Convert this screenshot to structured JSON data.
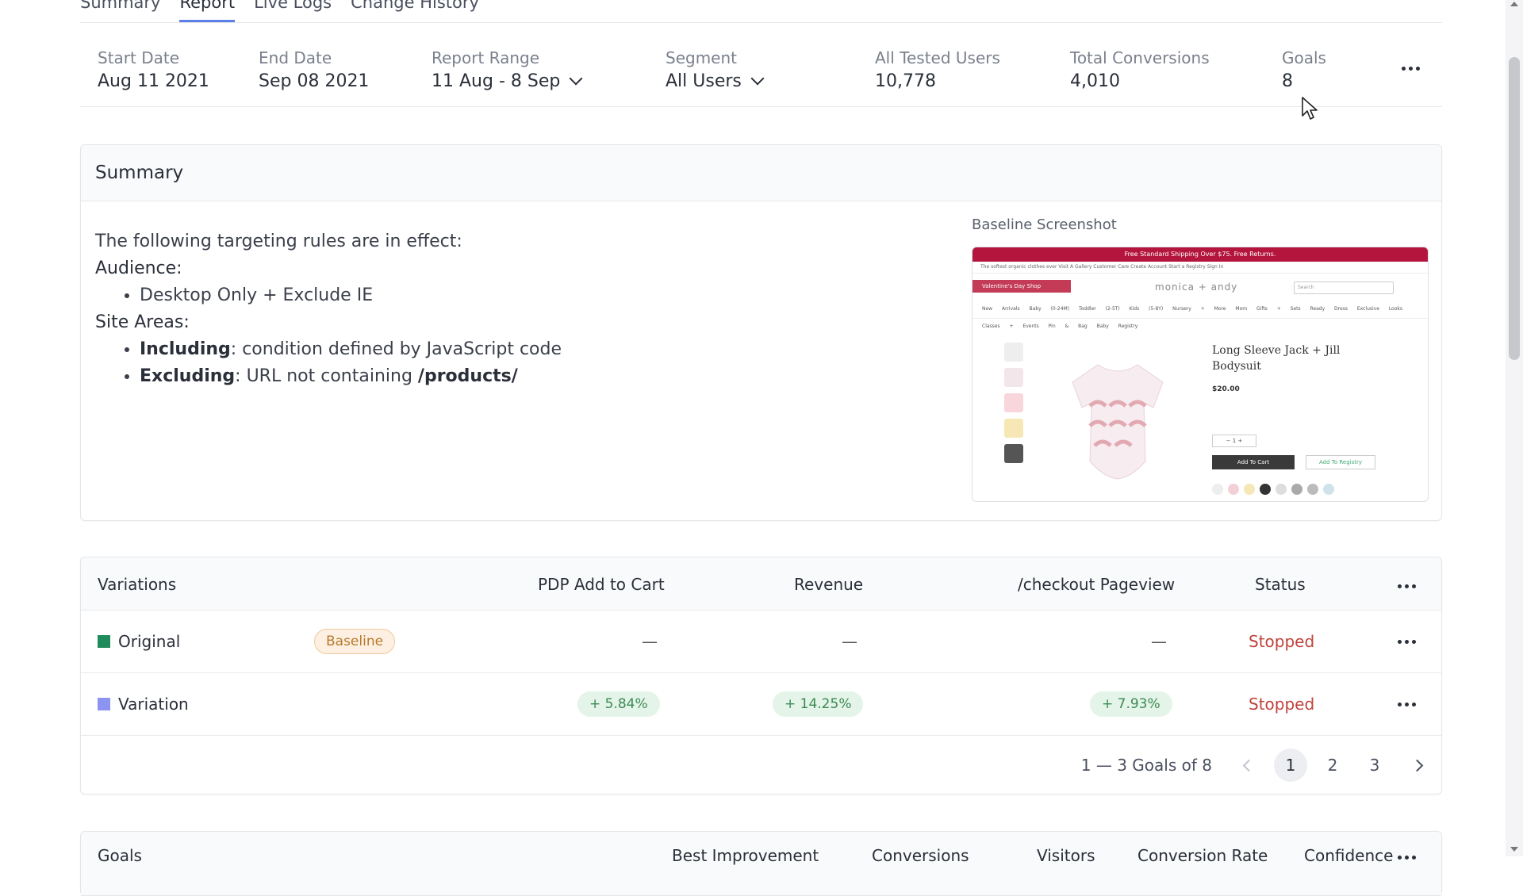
{
  "tabs": [
    {
      "label": "Summary"
    },
    {
      "label": "Report",
      "active": true
    },
    {
      "label": "Live Logs"
    },
    {
      "label": "Change History"
    }
  ],
  "metrics": {
    "start_date": {
      "label": "Start Date",
      "value": "Aug 11 2021"
    },
    "end_date": {
      "label": "End Date",
      "value": "Sep 08 2021"
    },
    "report_range": {
      "label": "Report Range",
      "value": "11 Aug - 8 Sep"
    },
    "segment": {
      "label": "Segment",
      "value": "All Users"
    },
    "tested_users": {
      "label": "All Tested Users",
      "value": "10,778"
    },
    "conversions": {
      "label": "Total Conversions",
      "value": "4,010"
    },
    "goals": {
      "label": "Goals",
      "value": "8"
    }
  },
  "summary": {
    "title": "Summary",
    "intro": "The following targeting rules are in effect:",
    "audience_heading": "Audience:",
    "audience_item": "Desktop Only + Exclude IE",
    "site_heading": "Site Areas:",
    "including_label": "Including",
    "including_text": ": condition defined by JavaScript code",
    "excluding_label": "Excluding",
    "excluding_text": ": URL not containing ",
    "excluding_path": "/products/",
    "screenshot_label": "Baseline Screenshot",
    "shot": {
      "banner": "Free Standard Shipping Over $75. Free Returns.",
      "top_links": "The softest organic clothes ever   Visit A Gallery   Customer Care   Create Account   Start a Registry   Sign In",
      "ribbon": "Valentine's Day Shop",
      "logo": "monica + andy",
      "search": "Search",
      "menu": "New Arrivals  Baby (0-24M)  Toddler (2-5T)  Kids (5-8Y)  Nursery + More  Mom  Gifts + Sets  Ready Dress  Exclusive Looks  Classes + Events  Pin & Bag  Baby Registry",
      "product": "Long Sleeve Jack + Jill Bodysuit",
      "price": "$20.00",
      "qty": "−  1  +",
      "add_cart": "Add To Cart",
      "add_registry": "Add To Registry"
    }
  },
  "variations": {
    "headers": {
      "variations": "Variations",
      "pdp": "PDP Add to Cart",
      "revenue": "Revenue",
      "checkout": "/checkout Pageview",
      "status": "Status"
    },
    "rows": [
      {
        "name": "Original",
        "color": "#1f8a5a",
        "badge": "Baseline",
        "pdp": "—",
        "revenue": "—",
        "checkout": "—",
        "status": "Stopped"
      },
      {
        "name": "Variation",
        "color": "#8c93f0",
        "badge": "",
        "pdp": "+ 5.84%",
        "revenue": "+ 14.25%",
        "checkout": "+ 7.93%",
        "status": "Stopped"
      }
    ],
    "pager": {
      "summary": "1 — 3 Goals of 8",
      "pages": [
        "1",
        "2",
        "3"
      ],
      "active": "1"
    }
  },
  "goals_table": {
    "headers": {
      "goals": "Goals",
      "best": "Best Improvement",
      "conversions": "Conversions",
      "visitors": "Visitors",
      "rate": "Conversion Rate",
      "confidence": "Confidence"
    }
  },
  "colors": {
    "accent": "#5b7fe6",
    "stopped": "#c0433c",
    "positive": "#3b8a55",
    "baseline_badge": "#b8792c"
  }
}
